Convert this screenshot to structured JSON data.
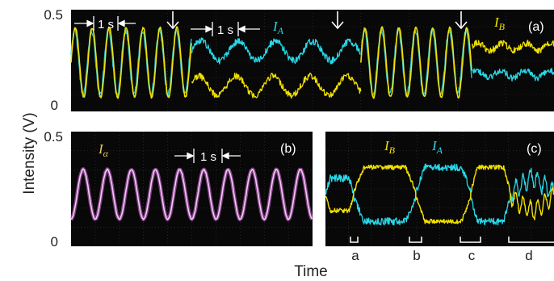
{
  "figure": {
    "ylabel": "Intensity (V)",
    "xlabel": "Time"
  },
  "colors": {
    "yellow": "#f2e000",
    "cyan": "#28d8e8",
    "magenta": "#e070e8",
    "white": "#ffffff",
    "scope_bg": "#080808"
  },
  "chart_data": [
    {
      "type": "line",
      "panel_tag": "(a)",
      "ytick_labels": [
        "0.5",
        "0"
      ],
      "ylim": [
        0,
        0.5
      ],
      "annotations": {
        "scale_bar_1": "1 s",
        "scale_bar_2": "1 s",
        "label_A": "I",
        "label_A_sub": "A",
        "label_B": "I",
        "label_B_sub": "B"
      },
      "arrow_markers": [
        "switch-1",
        "switch-2",
        "switch-3"
      ],
      "segments": [
        {
          "mode": "in-phase oscillation",
          "x": [
            0,
            0.25
          ],
          "period_s": 0.22,
          "ymin": 0.06,
          "ymax": 0.42,
          "series": [
            "yellow",
            "cyan"
          ]
        },
        {
          "mode": "I_A high, slow oscillation",
          "x": [
            0.25,
            0.6
          ],
          "upper": {
            "series": "cyan",
            "center": 0.3,
            "amp": 0.05
          },
          "lower": {
            "series": "yellow",
            "center": 0.12,
            "amp": 0.05
          }
        },
        {
          "mode": "in-phase oscillation",
          "x": [
            0.6,
            0.83
          ],
          "period_s": 0.22,
          "ymin": 0.06,
          "ymax": 0.42,
          "series": [
            "yellow",
            "cyan"
          ]
        },
        {
          "mode": "I_B high",
          "x": [
            0.83,
            1.0
          ],
          "upper": {
            "series": "yellow",
            "center": 0.32,
            "amp": 0.02
          },
          "lower": {
            "series": "cyan",
            "center": 0.18,
            "amp": 0.02
          }
        }
      ]
    },
    {
      "type": "line",
      "panel_tag": "(b)",
      "ytick_labels": [
        "0.5",
        "0"
      ],
      "ylim": [
        0,
        0.5
      ],
      "annotations": {
        "scale_bar": "1 s",
        "label_alpha": "I",
        "label_alpha_sub": "α"
      },
      "series": [
        {
          "color_key": "magenta",
          "shape": "sine",
          "cycles": 10,
          "ymin": 0.11,
          "ymax": 0.34
        }
      ]
    },
    {
      "type": "line",
      "panel_tag": "(c)",
      "annotations": {
        "label_B": "I",
        "label_B_sub": "B",
        "label_A": "I",
        "label_A_sub": "A"
      },
      "interval_labels": [
        "a",
        "b",
        "c",
        "d"
      ],
      "segments": [
        {
          "interval": "a",
          "upper": "yellow",
          "lower": "cyan",
          "high": 0.35,
          "low": 0.1
        },
        {
          "interval": "b",
          "upper": "cyan",
          "lower": "yellow",
          "high": 0.35,
          "low": 0.1
        },
        {
          "interval": "c",
          "upper": "yellow",
          "lower": "cyan",
          "high": 0.35,
          "low": 0.1
        },
        {
          "interval": "d",
          "upper": "cyan",
          "lower": "yellow",
          "high": 0.3,
          "low": 0.15
        }
      ]
    }
  ]
}
